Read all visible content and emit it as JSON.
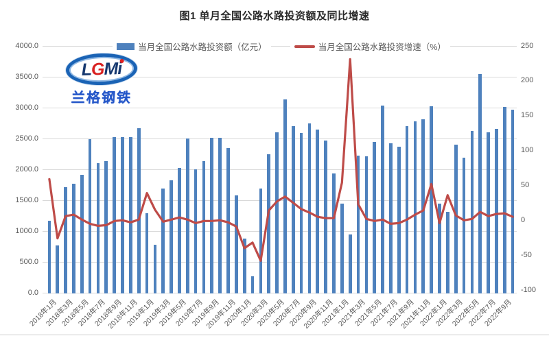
{
  "title": "图1 单月全国公路水路投资额及同比增速",
  "watermark": {
    "letters_pre": "L",
    "letter_g": "G",
    "letters_post": "Mi",
    "company": "兰格钢铁"
  },
  "colors": {
    "bar": "#4e81bd",
    "line": "#be4b48",
    "grid": "#d9d9d9",
    "axis_text": "#595959"
  },
  "chart_data": {
    "type": "bar+line",
    "title": "图1 单月全国公路水路投资额及同比增速",
    "n_points": 58,
    "tick_every": 2,
    "tick_labels": [
      "2018年1月",
      "2018年3月",
      "2018年5月",
      "2018年7月",
      "2018年9月",
      "2018年11月",
      "2019年1月",
      "2019年3月",
      "2019年5月",
      "2019年7月",
      "2019年9月",
      "2019年11月",
      "2020年1月",
      "2020年3月",
      "2020年5月",
      "2020年7月",
      "2020年9月",
      "2020年11月",
      "2021年1月",
      "2021年3月",
      "2021年5月",
      "2021年7月",
      "2021年9月",
      "2021年11月",
      "2022年1月",
      "2022年3月",
      "2022年5月",
      "2022年7月",
      "2022年9月"
    ],
    "series": [
      {
        "name": "当月全国公路水路投资额（亿元）",
        "type": "bar",
        "axis": "left",
        "color": "#4e81bd",
        "values": [
          1170,
          765,
          1710,
          1765,
          1915,
          2490,
          2100,
          2130,
          2520,
          2520,
          2525,
          2670,
          1285,
          780,
          1695,
          1820,
          2020,
          2500,
          2000,
          2130,
          2510,
          2510,
          2350,
          1575,
          880,
          270,
          1685,
          2240,
          2600,
          3135,
          2705,
          2590,
          2740,
          2650,
          2465,
          1935,
          1445,
          945,
          2220,
          2215,
          2450,
          3035,
          2420,
          2370,
          2695,
          2780,
          2815,
          3025,
          1445,
          1315,
          2395,
          2185,
          2620,
          3545,
          2600,
          2655,
          3010,
          2965
        ]
      },
      {
        "name": "当月全国公路水路投资增速（%）",
        "type": "line",
        "axis": "right",
        "color": "#be4b48",
        "values": [
          59,
          -26,
          6,
          8,
          1,
          -5,
          -8,
          -7,
          -1,
          0,
          -3,
          1,
          39,
          15,
          -2,
          1,
          4,
          1,
          -4,
          -1,
          -1,
          0,
          -3,
          -9,
          -40,
          -32,
          -58,
          14,
          27,
          34,
          25,
          16,
          11,
          5,
          3,
          3,
          54,
          231,
          23,
          2,
          -1,
          1,
          -5,
          -4,
          1,
          8,
          14,
          52,
          -4,
          36,
          7,
          0,
          2,
          12,
          6,
          9,
          10,
          5
        ]
      }
    ],
    "left_axis": {
      "min": 0,
      "max": 4000,
      "step": 500,
      "labels": [
        "4000.0",
        "3500.0",
        "3000.0",
        "2500.0",
        "2000.0",
        "1500.0",
        "1000.0",
        "500.0",
        "0.0"
      ]
    },
    "right_axis": {
      "min": -100,
      "max": 250,
      "step": 50,
      "labels": [
        "250",
        "200",
        "150",
        "100",
        "50",
        "0",
        "-50",
        "-100"
      ]
    },
    "grid": true,
    "legend_position": "top"
  }
}
